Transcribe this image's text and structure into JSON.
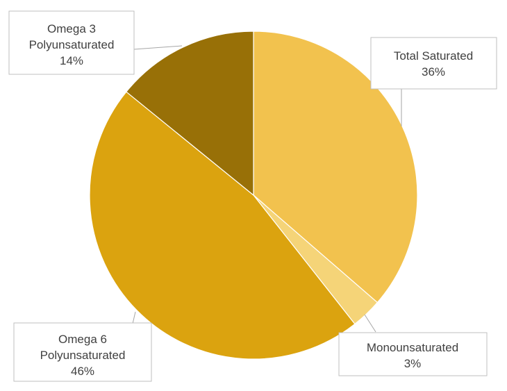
{
  "chart_data": {
    "type": "pie",
    "title": "",
    "slices": [
      {
        "name": "Total Saturated",
        "value": 36,
        "value_label": "36%",
        "color": "#f2c24e",
        "label_lines": [
          "Total Saturated"
        ]
      },
      {
        "name": "Monounsaturated",
        "value": 3,
        "value_label": "3%",
        "color": "#f5d478",
        "label_lines": [
          "Monounsaturated"
        ]
      },
      {
        "name": "Omega 6 Polyunsaturated",
        "value": 46,
        "value_label": "46%",
        "color": "#dba30f",
        "label_lines": [
          "Omega 6",
          "Polyunsaturated"
        ]
      },
      {
        "name": "Omega 3 Polyunsaturated",
        "value": 14,
        "value_label": "14%",
        "color": "#987007",
        "label_lines": [
          "Omega 3",
          "Polyunsaturated"
        ]
      }
    ]
  }
}
